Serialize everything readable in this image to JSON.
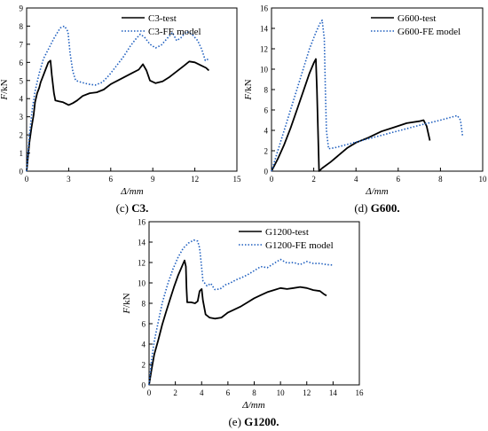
{
  "chart_data": [
    {
      "type": "line",
      "caption_letter": "(c)",
      "caption_text": " C3.",
      "xlabel": "Δ/mm",
      "ylabel_f": "F",
      "ylabel_unit": "/kN",
      "xlim": [
        0,
        15
      ],
      "ylim": [
        0,
        9
      ],
      "xticks": [
        0,
        3,
        6,
        9,
        12,
        15
      ],
      "yticks": [
        0,
        1,
        2,
        3,
        4,
        5,
        6,
        7,
        8,
        9
      ],
      "legend_position": "top-right",
      "series": [
        {
          "name": "C3-test",
          "style": "solid",
          "color": "#000000",
          "points": [
            [
              0,
              0
            ],
            [
              0.1,
              0.8
            ],
            [
              0.2,
              1.6
            ],
            [
              0.35,
              2.4
            ],
            [
              0.5,
              3.1
            ],
            [
              0.6,
              3.8
            ],
            [
              0.75,
              4.3
            ],
            [
              0.9,
              4.6
            ],
            [
              1.0,
              4.9
            ],
            [
              1.2,
              5.3
            ],
            [
              1.4,
              5.7
            ],
            [
              1.55,
              6.0
            ],
            [
              1.7,
              6.1
            ],
            [
              1.8,
              5.3
            ],
            [
              1.95,
              4.3
            ],
            [
              2.05,
              3.9
            ],
            [
              2.3,
              3.85
            ],
            [
              2.6,
              3.8
            ],
            [
              3.0,
              3.65
            ],
            [
              3.3,
              3.75
            ],
            [
              3.6,
              3.9
            ],
            [
              4.0,
              4.15
            ],
            [
              4.5,
              4.3
            ],
            [
              5.0,
              4.35
            ],
            [
              5.5,
              4.5
            ],
            [
              6.0,
              4.8
            ],
            [
              6.5,
              5.0
            ],
            [
              7.0,
              5.2
            ],
            [
              7.5,
              5.4
            ],
            [
              8.0,
              5.6
            ],
            [
              8.3,
              5.9
            ],
            [
              8.55,
              5.55
            ],
            [
              8.8,
              5.0
            ],
            [
              9.2,
              4.85
            ],
            [
              9.7,
              4.95
            ],
            [
              10.2,
              5.2
            ],
            [
              10.7,
              5.5
            ],
            [
              11.2,
              5.8
            ],
            [
              11.6,
              6.05
            ],
            [
              12.0,
              6.0
            ],
            [
              12.4,
              5.85
            ],
            [
              12.8,
              5.7
            ],
            [
              13.0,
              5.55
            ]
          ]
        },
        {
          "name": "C3-FE model",
          "style": "dotted",
          "color": "#1f5fbf",
          "points": [
            [
              0,
              0
            ],
            [
              0.2,
              2.0
            ],
            [
              0.4,
              3.4
            ],
            [
              0.6,
              4.4
            ],
            [
              0.9,
              5.4
            ],
            [
              1.2,
              6.2
            ],
            [
              1.6,
              6.8
            ],
            [
              2.0,
              7.4
            ],
            [
              2.4,
              7.9
            ],
            [
              2.7,
              8.0
            ],
            [
              2.95,
              7.7
            ],
            [
              3.1,
              6.5
            ],
            [
              3.3,
              5.5
            ],
            [
              3.5,
              5.0
            ],
            [
              3.9,
              4.9
            ],
            [
              4.4,
              4.8
            ],
            [
              4.9,
              4.75
            ],
            [
              5.4,
              4.9
            ],
            [
              5.9,
              5.3
            ],
            [
              6.4,
              5.8
            ],
            [
              6.9,
              6.3
            ],
            [
              7.4,
              6.9
            ],
            [
              7.8,
              7.3
            ],
            [
              8.1,
              7.55
            ],
            [
              8.4,
              7.4
            ],
            [
              8.8,
              7.0
            ],
            [
              9.2,
              6.8
            ],
            [
              9.6,
              6.95
            ],
            [
              10.0,
              7.3
            ],
            [
              10.4,
              7.65
            ],
            [
              10.7,
              7.2
            ],
            [
              11.0,
              7.35
            ],
            [
              11.4,
              7.7
            ],
            [
              11.8,
              7.55
            ],
            [
              12.2,
              7.2
            ],
            [
              12.5,
              6.7
            ],
            [
              12.75,
              6.1
            ],
            [
              13.0,
              6.2
            ]
          ]
        }
      ]
    },
    {
      "type": "line",
      "caption_letter": "(d)",
      "caption_text": " G600.",
      "xlabel": "Δ/mm",
      "ylabel_f": "F",
      "ylabel_unit": "/kN",
      "xlim": [
        0,
        10
      ],
      "ylim": [
        0,
        16
      ],
      "xticks": [
        0,
        2,
        4,
        6,
        8,
        10
      ],
      "yticks": [
        0,
        2,
        4,
        6,
        8,
        10,
        12,
        14,
        16
      ],
      "legend_position": "top-right",
      "series": [
        {
          "name": "G600-test",
          "style": "solid",
          "color": "#000000",
          "points": [
            [
              0,
              0
            ],
            [
              0.3,
              1.2
            ],
            [
              0.6,
              2.6
            ],
            [
              0.9,
              4.2
            ],
            [
              1.2,
              6.0
            ],
            [
              1.5,
              7.8
            ],
            [
              1.8,
              9.6
            ],
            [
              2.0,
              10.6
            ],
            [
              2.1,
              11.0
            ],
            [
              2.15,
              8.0
            ],
            [
              2.2,
              4.0
            ],
            [
              2.25,
              0.0
            ],
            [
              2.4,
              0.3
            ],
            [
              2.8,
              0.9
            ],
            [
              3.2,
              1.6
            ],
            [
              3.6,
              2.3
            ],
            [
              4.0,
              2.8
            ],
            [
              4.6,
              3.3
            ],
            [
              5.2,
              3.9
            ],
            [
              5.8,
              4.3
            ],
            [
              6.4,
              4.7
            ],
            [
              7.0,
              4.9
            ],
            [
              7.2,
              5.0
            ],
            [
              7.35,
              4.4
            ],
            [
              7.5,
              3.0
            ]
          ]
        },
        {
          "name": "G600-FE model",
          "style": "dotted",
          "color": "#1f5fbf",
          "points": [
            [
              0,
              0
            ],
            [
              0.3,
              2.0
            ],
            [
              0.6,
              4.0
            ],
            [
              0.9,
              6.0
            ],
            [
              1.2,
              8.0
            ],
            [
              1.5,
              10.0
            ],
            [
              1.8,
              12.0
            ],
            [
              2.1,
              13.6
            ],
            [
              2.3,
              14.5
            ],
            [
              2.4,
              14.8
            ],
            [
              2.5,
              13.0
            ],
            [
              2.55,
              8.0
            ],
            [
              2.6,
              4.0
            ],
            [
              2.7,
              2.2
            ],
            [
              3.0,
              2.3
            ],
            [
              4.0,
              2.85
            ],
            [
              5.0,
              3.4
            ],
            [
              6.0,
              3.95
            ],
            [
              7.0,
              4.5
            ],
            [
              8.0,
              5.0
            ],
            [
              8.8,
              5.45
            ],
            [
              8.95,
              5.0
            ],
            [
              9.05,
              3.4
            ]
          ]
        }
      ]
    },
    {
      "type": "line",
      "caption_letter": "(e)",
      "caption_text": " G1200.",
      "xlabel": "Δ/mm",
      "ylabel_f": "F",
      "ylabel_unit": "/kN",
      "xlim": [
        0,
        16
      ],
      "ylim": [
        0,
        16
      ],
      "xticks": [
        0,
        2,
        4,
        6,
        8,
        10,
        12,
        14,
        16
      ],
      "yticks": [
        0,
        2,
        4,
        6,
        8,
        10,
        12,
        14,
        16
      ],
      "legend_position": "top-right",
      "series": [
        {
          "name": "G1200-test",
          "style": "solid",
          "color": "#000000",
          "points": [
            [
              0,
              0
            ],
            [
              0.2,
              1.6
            ],
            [
              0.4,
              3.0
            ],
            [
              0.7,
              4.4
            ],
            [
              1.0,
              5.9
            ],
            [
              1.3,
              7.2
            ],
            [
              1.6,
              8.4
            ],
            [
              1.9,
              9.6
            ],
            [
              2.2,
              10.7
            ],
            [
              2.5,
              11.6
            ],
            [
              2.7,
              12.2
            ],
            [
              2.8,
              11.6
            ],
            [
              2.85,
              9.5
            ],
            [
              2.9,
              8.1
            ],
            [
              3.2,
              8.1
            ],
            [
              3.5,
              8.0
            ],
            [
              3.7,
              8.2
            ],
            [
              3.85,
              9.2
            ],
            [
              4.0,
              9.4
            ],
            [
              4.1,
              8.3
            ],
            [
              4.3,
              6.9
            ],
            [
              4.6,
              6.6
            ],
            [
              5.0,
              6.5
            ],
            [
              5.5,
              6.6
            ],
            [
              6.0,
              7.1
            ],
            [
              6.5,
              7.4
            ],
            [
              7.0,
              7.7
            ],
            [
              7.5,
              8.1
            ],
            [
              8.0,
              8.5
            ],
            [
              8.5,
              8.8
            ],
            [
              9.0,
              9.1
            ],
            [
              9.5,
              9.3
            ],
            [
              10.0,
              9.5
            ],
            [
              10.5,
              9.4
            ],
            [
              11.0,
              9.5
            ],
            [
              11.5,
              9.6
            ],
            [
              12.0,
              9.5
            ],
            [
              12.5,
              9.3
            ],
            [
              13.0,
              9.2
            ],
            [
              13.3,
              8.9
            ],
            [
              13.5,
              8.75
            ]
          ]
        },
        {
          "name": "G1200-FE model",
          "style": "dotted",
          "color": "#1f5fbf",
          "points": [
            [
              0,
              0
            ],
            [
              0.2,
              2.6
            ],
            [
              0.4,
              4.3
            ],
            [
              0.7,
              6.2
            ],
            [
              1.0,
              8.0
            ],
            [
              1.4,
              9.8
            ],
            [
              1.8,
              11.3
            ],
            [
              2.2,
              12.5
            ],
            [
              2.6,
              13.4
            ],
            [
              3.0,
              13.9
            ],
            [
              3.4,
              14.2
            ],
            [
              3.7,
              14.1
            ],
            [
              3.85,
              13.4
            ],
            [
              4.0,
              11.5
            ],
            [
              4.1,
              10.2
            ],
            [
              4.4,
              9.7
            ],
            [
              4.7,
              9.95
            ],
            [
              5.0,
              9.35
            ],
            [
              5.4,
              9.4
            ],
            [
              5.8,
              9.8
            ],
            [
              6.2,
              10.0
            ],
            [
              6.6,
              10.3
            ],
            [
              7.0,
              10.5
            ],
            [
              7.5,
              10.8
            ],
            [
              8.0,
              11.2
            ],
            [
              8.5,
              11.6
            ],
            [
              9.0,
              11.5
            ],
            [
              9.5,
              11.9
            ],
            [
              10.0,
              12.3
            ],
            [
              10.5,
              11.95
            ],
            [
              11.0,
              12.0
            ],
            [
              11.5,
              11.8
            ],
            [
              12.0,
              12.1
            ],
            [
              12.5,
              11.9
            ],
            [
              13.0,
              11.9
            ],
            [
              13.5,
              11.8
            ],
            [
              14.0,
              11.75
            ]
          ]
        }
      ]
    }
  ]
}
